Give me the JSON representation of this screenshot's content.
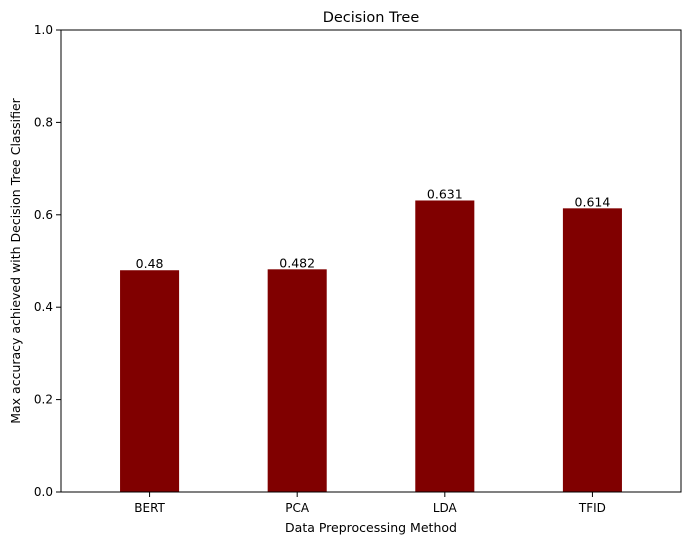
{
  "chart_data": {
    "type": "bar",
    "title": "Decision Tree",
    "xlabel": "Data Preprocessing Method",
    "ylabel": "Max accuracy achieved with Decision Tree Classifier",
    "categories": [
      "BERT",
      "PCA",
      "LDA",
      "TFID"
    ],
    "values": [
      0.48,
      0.482,
      0.631,
      0.614
    ],
    "value_labels": [
      "0.48",
      "0.482",
      "0.631",
      "0.614"
    ],
    "ylim": [
      0,
      1.0
    ],
    "yticks": [
      0.0,
      0.2,
      0.4,
      0.6,
      0.8,
      1.0
    ],
    "ytick_labels": [
      "0.0",
      "0.2",
      "0.4",
      "0.6",
      "0.8",
      "1.0"
    ],
    "bar_color": "#800000",
    "grid": false,
    "legend": "none"
  }
}
